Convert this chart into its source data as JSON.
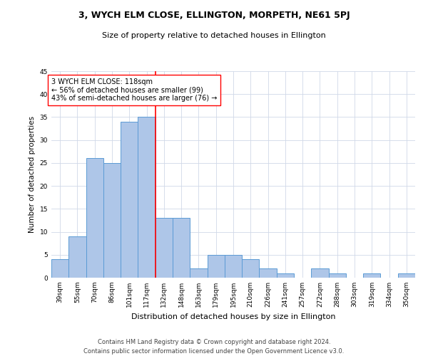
{
  "title1": "3, WYCH ELM CLOSE, ELLINGTON, MORPETH, NE61 5PJ",
  "title2": "Size of property relative to detached houses in Ellington",
  "xlabel": "Distribution of detached houses by size in Ellington",
  "ylabel": "Number of detached properties",
  "categories": [
    "39sqm",
    "55sqm",
    "70sqm",
    "86sqm",
    "101sqm",
    "117sqm",
    "132sqm",
    "148sqm",
    "163sqm",
    "179sqm",
    "195sqm",
    "210sqm",
    "226sqm",
    "241sqm",
    "257sqm",
    "272sqm",
    "288sqm",
    "303sqm",
    "319sqm",
    "334sqm",
    "350sqm"
  ],
  "values": [
    4,
    9,
    26,
    25,
    34,
    35,
    13,
    13,
    2,
    5,
    5,
    4,
    2,
    1,
    0,
    2,
    1,
    0,
    1,
    0,
    1
  ],
  "bar_color": "#aec6e8",
  "bar_edge_color": "#5b9bd5",
  "redline_index": 5.5,
  "ylim": [
    0,
    45
  ],
  "yticks": [
    0,
    5,
    10,
    15,
    20,
    25,
    30,
    35,
    40,
    45
  ],
  "annotation_title": "3 WYCH ELM CLOSE: 118sqm",
  "annotation_line1": "← 56% of detached houses are smaller (99)",
  "annotation_line2": "43% of semi-detached houses are larger (76) →",
  "footnote1": "Contains HM Land Registry data © Crown copyright and database right 2024.",
  "footnote2": "Contains public sector information licensed under the Open Government Licence v3.0.",
  "background_color": "#ffffff",
  "grid_color": "#d0d8e8",
  "title1_fontsize": 9,
  "title2_fontsize": 8,
  "ylabel_fontsize": 7.5,
  "xlabel_fontsize": 8,
  "tick_fontsize": 6.5,
  "annotation_fontsize": 7,
  "footnote_fontsize": 6
}
